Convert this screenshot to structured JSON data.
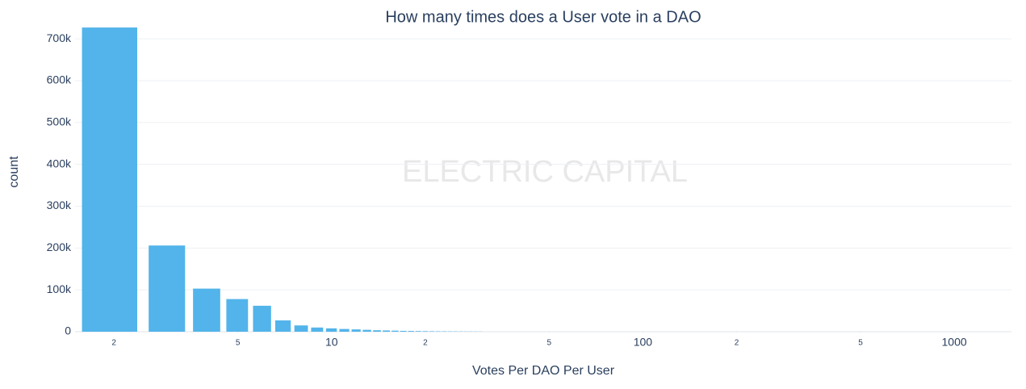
{
  "chart_data": {
    "type": "bar",
    "title": "How many times does a User vote in a DAO",
    "xlabel": "Votes Per DAO Per User",
    "ylabel": "count",
    "watermark": "ELECTRIC CAPITAL",
    "color": "#52b4ea",
    "xscale": "log",
    "grid": true,
    "x": [
      2,
      3,
      4,
      5,
      6,
      7,
      8,
      9,
      10,
      11,
      12,
      13,
      14,
      15,
      16,
      17,
      18,
      19,
      20,
      21,
      22,
      23,
      24,
      25,
      26,
      27,
      28,
      29,
      30
    ],
    "values": [
      727000,
      206000,
      103000,
      78000,
      62000,
      27000,
      15000,
      10000,
      8000,
      6500,
      5500,
      4500,
      3500,
      3000,
      2500,
      2000,
      1800,
      1500,
      1300,
      1100,
      1000,
      900,
      800,
      700,
      600,
      500,
      450,
      400,
      350
    ],
    "xlim": [
      1.5,
      1527
    ],
    "xticks": [
      2,
      5,
      10,
      {
        "value": 20,
        "label": "2"
      },
      {
        "value": 50,
        "label": "5"
      },
      100,
      {
        "value": 200,
        "label": "2"
      },
      {
        "value": 500,
        "label": "5"
      },
      1000
    ],
    "ylim": [
      0,
      760000
    ],
    "yticks": [
      0,
      {
        "value": 100000,
        "label": "100k"
      },
      {
        "value": 200000,
        "label": "200k"
      },
      {
        "value": 300000,
        "label": "300k"
      },
      {
        "value": 400000,
        "label": "400k"
      },
      {
        "value": 500000,
        "label": "500k"
      },
      {
        "value": 600000,
        "label": "600k"
      },
      {
        "value": 700000,
        "label": "700k"
      }
    ]
  }
}
